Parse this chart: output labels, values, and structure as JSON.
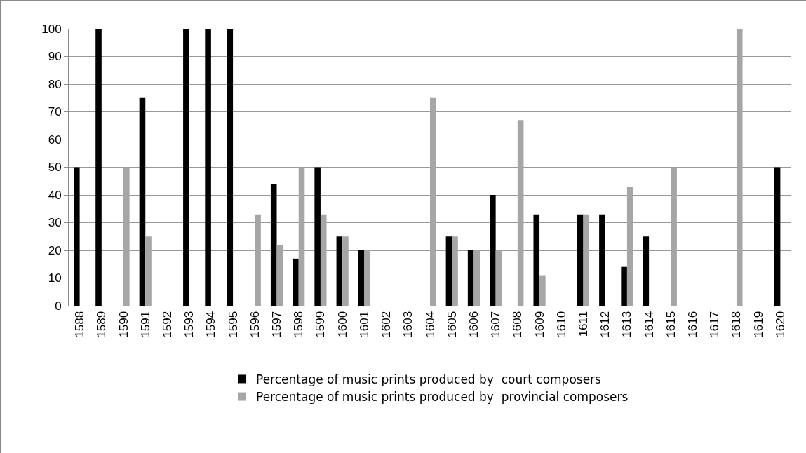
{
  "chart_data": {
    "type": "bar",
    "categories": [
      "1588",
      "1589",
      "1590",
      "1591",
      "1592",
      "1593",
      "1594",
      "1595",
      "1596",
      "1597",
      "1598",
      "1599",
      "1600",
      "1601",
      "1602",
      "1603",
      "1604",
      "1605",
      "1606",
      "1607",
      "1608",
      "1609",
      "1610",
      "1611",
      "1612",
      "1613",
      "1614",
      "1615",
      "1616",
      "1617",
      "1618",
      "1619",
      "1620"
    ],
    "series": [
      {
        "name": "Percentage of music prints produced by  court composers",
        "color": "#000000",
        "values": [
          50,
          100,
          null,
          75,
          null,
          100,
          100,
          100,
          null,
          44,
          17,
          50,
          25,
          20,
          null,
          null,
          null,
          25,
          20,
          40,
          null,
          33,
          null,
          33,
          33,
          14,
          25,
          null,
          null,
          null,
          null,
          null,
          50
        ]
      },
      {
        "name": "Percentage of music prints produced by  provincial composers",
        "color": "#a6a6a6",
        "values": [
          null,
          null,
          50,
          25,
          null,
          null,
          null,
          null,
          33,
          22,
          50,
          33,
          25,
          20,
          null,
          null,
          75,
          25,
          20,
          20,
          67,
          11,
          null,
          33,
          null,
          43,
          null,
          50,
          null,
          null,
          100,
          null,
          null
        ]
      }
    ],
    "ylim": [
      0,
      100
    ],
    "yticks": [
      0,
      10,
      20,
      30,
      40,
      50,
      60,
      70,
      80,
      90,
      100
    ],
    "grid": "y",
    "legend": "bottom"
  }
}
